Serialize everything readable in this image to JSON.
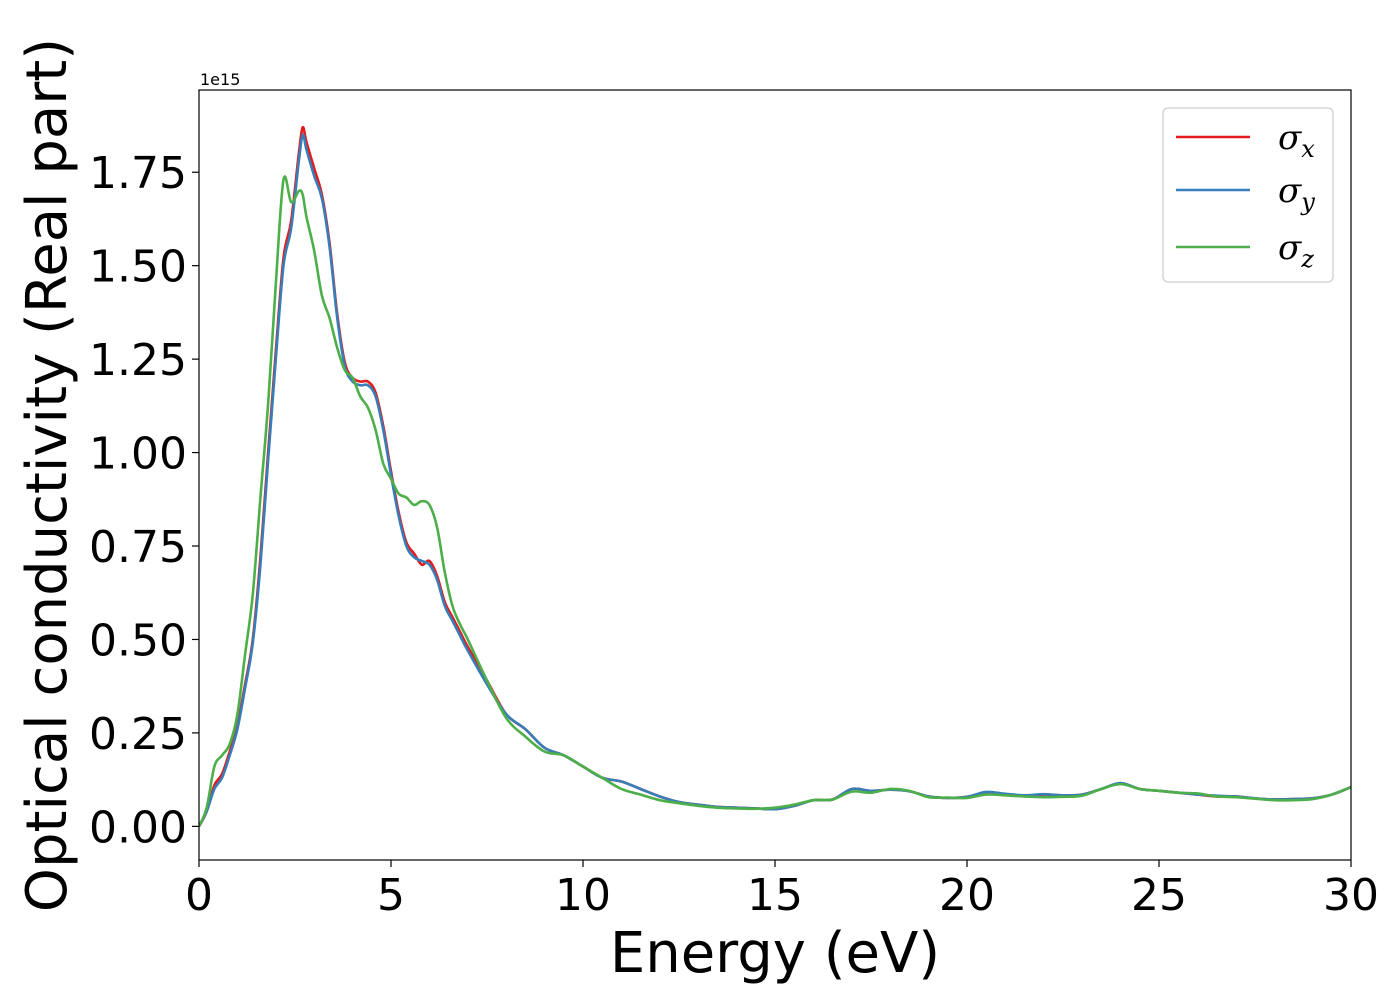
{
  "chart_data": {
    "type": "line",
    "title": "",
    "xlabel": "Energy (eV)",
    "ylabel": "Optical conductivity (Real part)",
    "y_offset_label": "1e15",
    "y_scale": 1000000000000000.0,
    "xlim": [
      0,
      30
    ],
    "ylim": [
      -0.09,
      1.97
    ],
    "xticks": [
      "0",
      "5",
      "10",
      "15",
      "20",
      "25",
      "30"
    ],
    "xtick_values": [
      0,
      5,
      10,
      15,
      20,
      25,
      30
    ],
    "yticks": [
      "0.00",
      "0.25",
      "0.50",
      "0.75",
      "1.00",
      "1.25",
      "1.50",
      "1.75"
    ],
    "ytick_values": [
      0,
      0.25,
      0.5,
      0.75,
      1.0,
      1.25,
      1.5,
      1.75
    ],
    "grid": false,
    "legend_position": "top-right",
    "series": [
      {
        "name": "σx",
        "legend_base": "σ",
        "legend_sub": "x",
        "color": "#e41a1c",
        "x": [
          0,
          0.2,
          0.4,
          0.6,
          0.8,
          1.0,
          1.2,
          1.4,
          1.6,
          1.8,
          2.0,
          2.2,
          2.4,
          2.6,
          2.7,
          2.8,
          3.0,
          3.2,
          3.4,
          3.6,
          3.8,
          4.0,
          4.2,
          4.4,
          4.6,
          4.8,
          5.0,
          5.2,
          5.4,
          5.6,
          5.8,
          6.0,
          6.2,
          6.4,
          6.6,
          6.8,
          7.0,
          7.5,
          8.0,
          8.5,
          9.0,
          9.5,
          10.0,
          10.5,
          11.0,
          11.5,
          12.0,
          12.5,
          13.0,
          13.5,
          14.0,
          14.5,
          15.0,
          15.5,
          16.0,
          16.5,
          17.0,
          17.5,
          18.0,
          18.5,
          19.0,
          19.5,
          20.0,
          20.5,
          21.0,
          21.5,
          22.0,
          22.5,
          23.0,
          23.5,
          24.0,
          24.5,
          25.0,
          25.5,
          26.0,
          26.5,
          27.0,
          27.5,
          28.0,
          28.5,
          29.0,
          29.5,
          30.0
        ],
        "values": [
          0.0,
          0.04,
          0.11,
          0.14,
          0.2,
          0.27,
          0.38,
          0.5,
          0.72,
          1.0,
          1.27,
          1.52,
          1.62,
          1.8,
          1.87,
          1.83,
          1.76,
          1.69,
          1.56,
          1.37,
          1.24,
          1.2,
          1.19,
          1.19,
          1.16,
          1.07,
          0.95,
          0.84,
          0.76,
          0.73,
          0.7,
          0.71,
          0.67,
          0.6,
          0.56,
          0.52,
          0.48,
          0.39,
          0.3,
          0.26,
          0.21,
          0.19,
          0.16,
          0.13,
          0.12,
          0.1,
          0.08,
          0.065,
          0.058,
          0.052,
          0.05,
          0.048,
          0.046,
          0.055,
          0.07,
          0.072,
          0.1,
          0.095,
          0.098,
          0.094,
          0.08,
          0.076,
          0.079,
          0.09,
          0.085,
          0.081,
          0.085,
          0.083,
          0.085,
          0.1,
          0.115,
          0.1,
          0.095,
          0.09,
          0.085,
          0.08,
          0.08,
          0.075,
          0.072,
          0.073,
          0.075,
          0.085,
          0.105
        ]
      },
      {
        "name": "σy",
        "legend_base": "σ",
        "legend_sub": "y",
        "color": "#377eb8",
        "x": [
          0,
          0.2,
          0.4,
          0.6,
          0.8,
          1.0,
          1.2,
          1.4,
          1.6,
          1.8,
          2.0,
          2.2,
          2.4,
          2.6,
          2.7,
          2.8,
          3.0,
          3.2,
          3.4,
          3.6,
          3.8,
          4.0,
          4.2,
          4.4,
          4.6,
          4.8,
          5.0,
          5.2,
          5.4,
          5.6,
          5.8,
          6.0,
          6.2,
          6.4,
          6.6,
          6.8,
          7.0,
          7.5,
          8.0,
          8.5,
          9.0,
          9.5,
          10.0,
          10.5,
          11.0,
          11.5,
          12.0,
          12.5,
          13.0,
          13.5,
          14.0,
          14.5,
          15.0,
          15.5,
          16.0,
          16.5,
          17.0,
          17.5,
          18.0,
          18.5,
          19.0,
          19.5,
          20.0,
          20.5,
          21.0,
          21.5,
          22.0,
          22.5,
          23.0,
          23.5,
          24.0,
          24.5,
          25.0,
          25.5,
          26.0,
          26.5,
          27.0,
          27.5,
          28.0,
          28.5,
          29.0,
          29.5,
          30.0
        ],
        "values": [
          0.0,
          0.04,
          0.1,
          0.13,
          0.19,
          0.26,
          0.37,
          0.49,
          0.7,
          0.98,
          1.25,
          1.5,
          1.6,
          1.78,
          1.85,
          1.81,
          1.74,
          1.68,
          1.55,
          1.36,
          1.23,
          1.19,
          1.18,
          1.18,
          1.15,
          1.06,
          0.94,
          0.83,
          0.75,
          0.72,
          0.71,
          0.7,
          0.66,
          0.59,
          0.55,
          0.51,
          0.47,
          0.38,
          0.3,
          0.26,
          0.21,
          0.19,
          0.16,
          0.13,
          0.12,
          0.1,
          0.08,
          0.065,
          0.058,
          0.052,
          0.05,
          0.048,
          0.046,
          0.055,
          0.07,
          0.072,
          0.1,
          0.095,
          0.098,
          0.094,
          0.08,
          0.076,
          0.079,
          0.092,
          0.087,
          0.083,
          0.086,
          0.083,
          0.085,
          0.1,
          0.116,
          0.1,
          0.095,
          0.09,
          0.085,
          0.082,
          0.08,
          0.075,
          0.072,
          0.073,
          0.075,
          0.085,
          0.105
        ]
      },
      {
        "name": "σz",
        "legend_base": "σ",
        "legend_sub": "z",
        "color": "#4daf4a",
        "x": [
          0,
          0.2,
          0.4,
          0.6,
          0.8,
          1.0,
          1.2,
          1.4,
          1.6,
          1.8,
          2.0,
          2.2,
          2.4,
          2.6,
          2.7,
          2.8,
          3.0,
          3.2,
          3.4,
          3.6,
          3.8,
          4.0,
          4.2,
          4.4,
          4.6,
          4.8,
          5.0,
          5.2,
          5.4,
          5.6,
          5.8,
          6.0,
          6.2,
          6.4,
          6.6,
          6.8,
          7.0,
          7.5,
          8.0,
          8.5,
          9.0,
          9.5,
          10.0,
          10.5,
          11.0,
          11.5,
          12.0,
          12.5,
          13.0,
          13.5,
          14.0,
          14.5,
          15.0,
          15.5,
          16.0,
          16.5,
          17.0,
          17.5,
          18.0,
          18.5,
          19.0,
          19.5,
          20.0,
          20.5,
          21.0,
          21.5,
          22.0,
          22.5,
          23.0,
          23.5,
          24.0,
          24.5,
          25.0,
          25.5,
          26.0,
          26.5,
          27.0,
          27.5,
          28.0,
          28.5,
          29.0,
          29.5,
          30.0
        ],
        "values": [
          0.0,
          0.05,
          0.16,
          0.19,
          0.22,
          0.3,
          0.46,
          0.62,
          0.88,
          1.13,
          1.45,
          1.73,
          1.67,
          1.7,
          1.69,
          1.63,
          1.54,
          1.42,
          1.36,
          1.28,
          1.22,
          1.2,
          1.15,
          1.12,
          1.06,
          0.97,
          0.93,
          0.89,
          0.88,
          0.86,
          0.87,
          0.86,
          0.8,
          0.68,
          0.59,
          0.54,
          0.5,
          0.39,
          0.29,
          0.24,
          0.2,
          0.19,
          0.16,
          0.13,
          0.1,
          0.085,
          0.07,
          0.062,
          0.055,
          0.05,
          0.048,
          0.047,
          0.05,
          0.058,
          0.07,
          0.072,
          0.093,
          0.09,
          0.1,
          0.095,
          0.078,
          0.077,
          0.076,
          0.085,
          0.083,
          0.08,
          0.078,
          0.079,
          0.082,
          0.1,
          0.113,
          0.1,
          0.095,
          0.09,
          0.088,
          0.08,
          0.078,
          0.074,
          0.07,
          0.07,
          0.073,
          0.085,
          0.105
        ]
      }
    ]
  }
}
